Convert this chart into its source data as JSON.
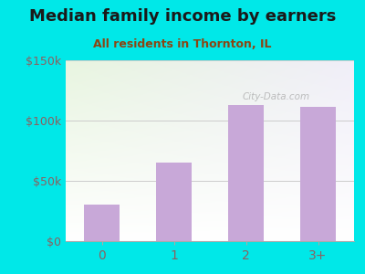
{
  "title": "Median family income by earners",
  "subtitle": "All residents in Thornton, IL",
  "categories": [
    "0",
    "1",
    "2",
    "3+"
  ],
  "values": [
    30000,
    65000,
    113000,
    111000
  ],
  "bar_color": "#c8a8d8",
  "ylim": [
    0,
    150000
  ],
  "yticks": [
    0,
    50000,
    100000,
    150000
  ],
  "ytick_labels": [
    "$0",
    "$50k",
    "$100k",
    "$150k"
  ],
  "bg_outer": "#00e8e8",
  "title_color": "#1a1a1a",
  "subtitle_color": "#8b4513",
  "tick_label_color": "#8b6060",
  "watermark": "City-Data.com",
  "title_fontsize": 13,
  "subtitle_fontsize": 9,
  "grid_color": "#cccccc",
  "bottom_spine_color": "#aaaaaa"
}
